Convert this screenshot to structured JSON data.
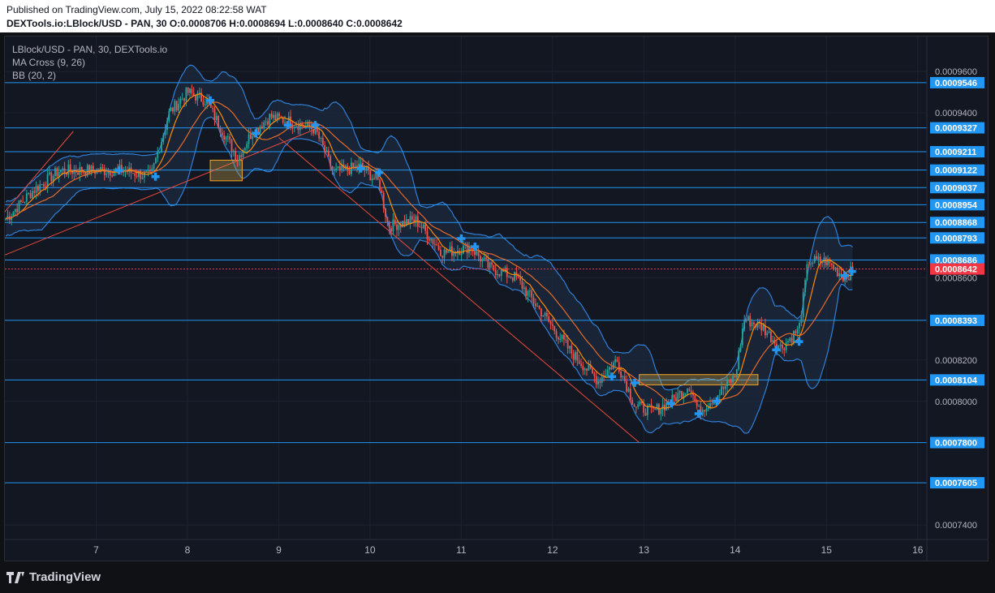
{
  "header": {
    "published": "Published on TradingView.com, July 15, 2022 08:22:58 WAT",
    "symbol_line": "DEXTools.io:LBlock/USD - PAN, 30",
    "ohlc": "O:0.0008706 H:0.0008694 L:0.0008640 C:0.0008642"
  },
  "legend": {
    "symbol": "LBlock/USD - PAN, 30, DEXTools.io",
    "ma_cross": "MA Cross (9, 26)",
    "bb": "BB (20, 2)"
  },
  "footer": {
    "brand": "TradingView",
    "logo_icon": "tradingview-logo-icon"
  },
  "colors": {
    "background": "#131722",
    "grid": "#1e2230",
    "hline": "#2196f3",
    "trendline": "#e5483b",
    "band": "#2f7fd6",
    "band_fill": "#1c2a3d",
    "ma_fast": "#ff8c00",
    "ma_slow": "#e46a2a",
    "candle_up": "#26a69a",
    "candle_down": "#ef5350",
    "price_label_bg": "#2196f3",
    "last_price_bg": "#f23645",
    "cross_marker": "#2196f3",
    "zone_fill": "#c8a24a",
    "zone_stroke": "#f5a623"
  },
  "chart_data": {
    "type": "candlestick",
    "symbol": "LBlock/USD",
    "x_tick_labels": [
      "7",
      "8",
      "9",
      "10",
      "11",
      "12",
      "13",
      "14",
      "15",
      "16"
    ],
    "x_range": [
      6.0,
      16.1
    ],
    "y_range": [
      0.000733,
      0.000977
    ],
    "y_tick_labels": [
      "0.0009600",
      "0.0009400",
      "0.0008600",
      "0.0008200",
      "0.0008000",
      "0.0007400"
    ],
    "y_tick_values": [
      0.00096,
      0.00094,
      0.00086,
      0.00082,
      0.0008,
      0.00074
    ],
    "horizontal_levels": [
      "0.0009546",
      "0.0009327",
      "0.0009211",
      "0.0009122",
      "0.0009037",
      "0.0008954",
      "0.0008868",
      "0.0008793",
      "0.0008686",
      "0.0008393",
      "0.0008104",
      "0.0007800",
      "0.0007605"
    ],
    "last_price": "0.0008642",
    "close_path": [
      [
        6.0,
        0.000888
      ],
      [
        6.3,
        0.000902
      ],
      [
        6.6,
        0.000912
      ],
      [
        7.0,
        0.000912
      ],
      [
        7.3,
        0.000912
      ],
      [
        7.6,
        0.000909
      ],
      [
        7.8,
        0.00094
      ],
      [
        8.0,
        0.00095
      ],
      [
        8.2,
        0.000946
      ],
      [
        8.4,
        0.00093
      ],
      [
        8.55,
        0.000918
      ],
      [
        8.7,
        0.00093
      ],
      [
        8.9,
        0.000938
      ],
      [
        9.1,
        0.000936
      ],
      [
        9.4,
        0.000932
      ],
      [
        9.6,
        0.000911
      ],
      [
        9.9,
        0.000914
      ],
      [
        10.1,
        0.000906
      ],
      [
        10.2,
        0.000885
      ],
      [
        10.5,
        0.000888
      ],
      [
        10.8,
        0.000872
      ],
      [
        11.1,
        0.000875
      ],
      [
        11.3,
        0.000865
      ],
      [
        11.6,
        0.00086
      ],
      [
        11.9,
        0.000842
      ],
      [
        12.2,
        0.000824
      ],
      [
        12.5,
        0.00081
      ],
      [
        12.7,
        0.00082
      ],
      [
        12.9,
        0.000798
      ],
      [
        13.1,
        0.000795
      ],
      [
        13.3,
        0.0008
      ],
      [
        13.5,
        0.000808
      ],
      [
        13.6,
        0.000795
      ],
      [
        13.8,
        0.000803
      ],
      [
        14.0,
        0.000812
      ],
      [
        14.1,
        0.00084
      ],
      [
        14.3,
        0.000836
      ],
      [
        14.5,
        0.000826
      ],
      [
        14.7,
        0.000835
      ],
      [
        14.8,
        0.000868
      ],
      [
        15.0,
        0.000868
      ],
      [
        15.2,
        0.00086
      ],
      [
        15.3,
        0.000864
      ]
    ],
    "trendlines": [
      {
        "from": [
          6.0,
          0.000871
        ],
        "to": [
          9.4,
          0.000932
        ]
      },
      {
        "from": [
          6.0,
          0.000892
        ],
        "to": [
          6.75,
          0.000931
        ]
      },
      {
        "from": [
          9.0,
          0.000928
        ],
        "to": [
          12.95,
          0.00078
        ]
      }
    ],
    "zones": [
      {
        "x": [
          8.25,
          8.6
        ],
        "y": [
          0.000907,
          0.000917
        ]
      },
      {
        "x": [
          12.95,
          14.25
        ],
        "y": [
          0.000808,
          0.000813
        ]
      }
    ],
    "ma_cross_points": [
      [
        7.25,
        0.000912
      ],
      [
        7.65,
        0.000909
      ],
      [
        8.25,
        0.000946
      ],
      [
        8.75,
        0.00093
      ],
      [
        9.1,
        0.000934
      ],
      [
        9.4,
        0.000934
      ],
      [
        9.9,
        0.000913
      ],
      [
        10.1,
        0.000911
      ],
      [
        11.0,
        0.000879
      ],
      [
        11.15,
        0.000875
      ],
      [
        12.65,
        0.000812
      ],
      [
        12.9,
        0.000809
      ],
      [
        13.3,
        0.000799
      ],
      [
        13.6,
        0.000794
      ],
      [
        13.8,
        0.0008
      ],
      [
        14.45,
        0.000825
      ],
      [
        14.7,
        0.000829
      ],
      [
        15.2,
        0.000861
      ],
      [
        15.28,
        0.000863
      ]
    ]
  }
}
